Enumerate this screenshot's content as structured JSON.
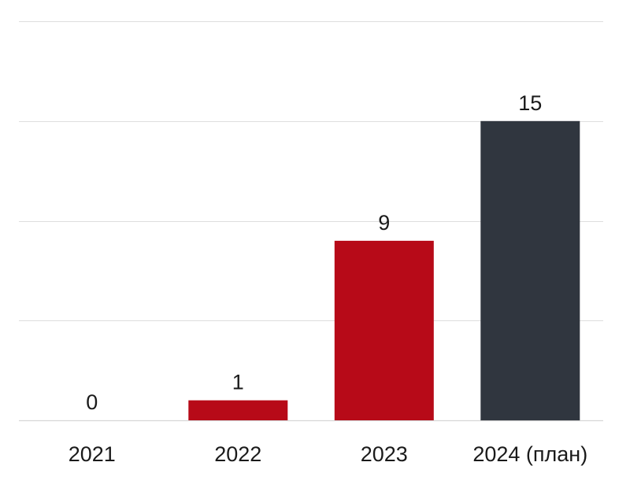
{
  "chart_data": {
    "type": "bar",
    "categories": [
      "2021",
      "2022",
      "2023",
      "2024 (план)"
    ],
    "values": [
      0,
      1,
      9,
      15
    ],
    "bar_colors": [
      "#b70a18",
      "#b70a18",
      "#b70a18",
      "#30363f"
    ],
    "data_labels": [
      "0",
      "1",
      "9",
      "15"
    ],
    "title": "",
    "xlabel": "",
    "ylabel": "",
    "ylim": [
      0,
      20
    ],
    "grid": true,
    "y_gridlines": [
      0,
      5,
      10,
      15,
      20
    ],
    "y_tick_labels_shown": false,
    "legend": "none"
  }
}
